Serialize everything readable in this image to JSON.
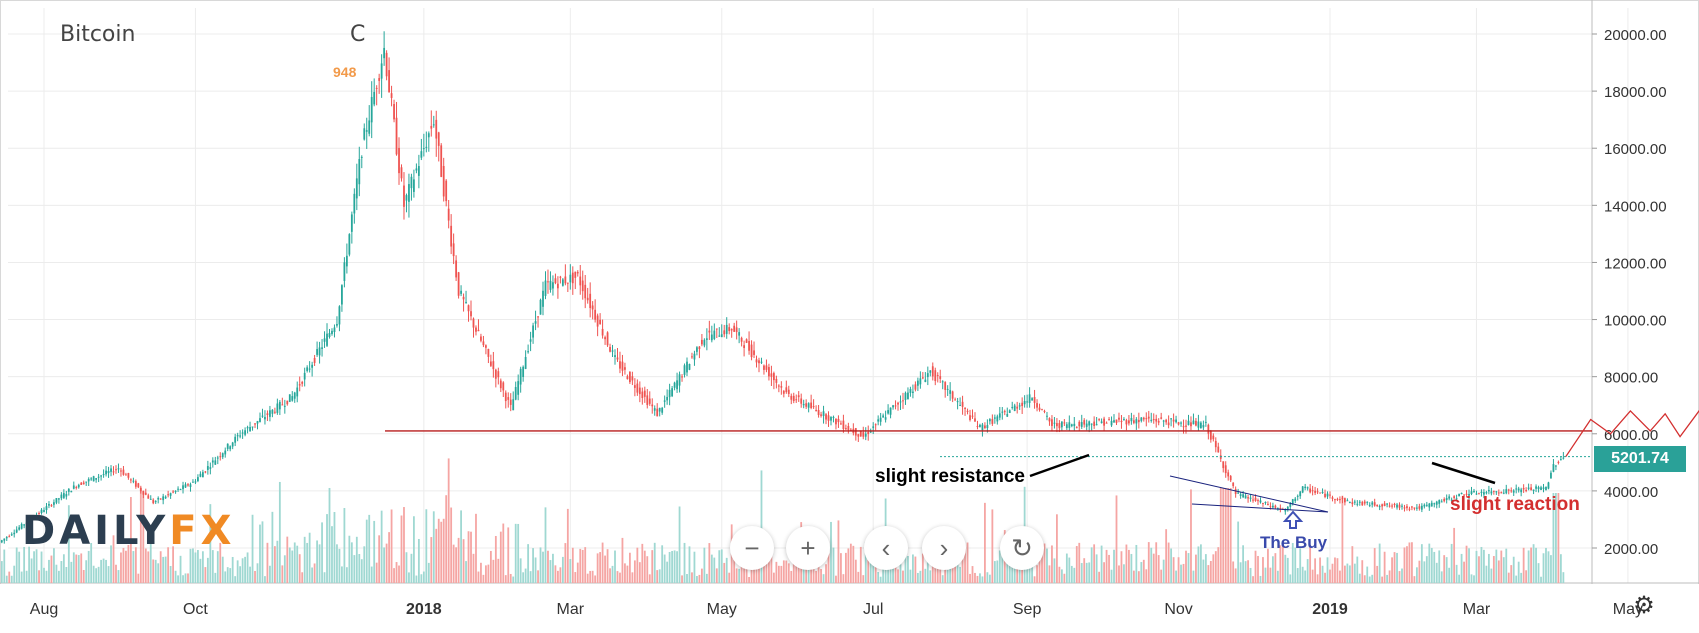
{
  "title": "Bitcoin",
  "title_suffix": "C",
  "high_tag": "948",
  "logo": {
    "part1": "DAILY",
    "part2": "FX"
  },
  "annotations": {
    "resistance": "slight resistance",
    "buy": "The Buy",
    "reaction": "slight reaction"
  },
  "last_price": "5201.74",
  "toolbar": {
    "zoom_out": "−",
    "zoom_in": "+",
    "back": "‹",
    "forward": "›",
    "reset": "↻"
  },
  "settings_icon": "gear-icon",
  "colors": {
    "up": "#26a69a",
    "down": "#ef5350",
    "up_vol": "#9fd8d2",
    "down_vol": "#f5a5a3",
    "support_line": "#b71c1c",
    "projection": "#d32f2f",
    "wedge": "#1a237e",
    "buy_arrow": "#3f51b5",
    "annotation_text": "#000000",
    "reaction_text": "#d32f2f",
    "buy_text": "#3949ab"
  },
  "chart_data": {
    "type": "candlestick",
    "y_ticks": [
      "20000.00",
      "18000.00",
      "16000.00",
      "14000.00",
      "12000.00",
      "10000.00",
      "8000.00",
      "6000.00",
      "4000.00",
      "2000.00"
    ],
    "x_ticks": [
      "Aug",
      "Oct",
      "2018",
      "Mar",
      "May",
      "Jul",
      "Sep",
      "Nov",
      "2019",
      "Mar",
      "May"
    ],
    "ylim": [
      0,
      20700
    ],
    "support_level": 6100,
    "current_level": 5201.74,
    "price_path": [
      [
        "2017-07-15",
        2200
      ],
      [
        "2017-08-15",
        4200
      ],
      [
        "2017-09-01",
        4800
      ],
      [
        "2017-09-15",
        3600
      ],
      [
        "2017-10-01",
        4300
      ],
      [
        "2017-10-20",
        6000
      ],
      [
        "2017-11-10",
        7300
      ],
      [
        "2017-11-28",
        10000
      ],
      [
        "2017-12-08",
        16000
      ],
      [
        "2017-12-17",
        19500
      ],
      [
        "2017-12-25",
        14000
      ],
      [
        "2018-01-06",
        17000
      ],
      [
        "2018-01-16",
        11000
      ],
      [
        "2018-02-06",
        6900
      ],
      [
        "2018-02-20",
        11200
      ],
      [
        "2018-03-05",
        11500
      ],
      [
        "2018-03-20",
        8600
      ],
      [
        "2018-04-06",
        6700
      ],
      [
        "2018-04-25",
        9400
      ],
      [
        "2018-05-06",
        9700
      ],
      [
        "2018-05-28",
        7400
      ],
      [
        "2018-06-28",
        5900
      ],
      [
        "2018-07-25",
        8200
      ],
      [
        "2018-08-14",
        6200
      ],
      [
        "2018-09-04",
        7300
      ],
      [
        "2018-09-12",
        6300
      ],
      [
        "2018-10-20",
        6500
      ],
      [
        "2018-11-13",
        6300
      ],
      [
        "2018-11-25",
        3900
      ],
      [
        "2018-12-15",
        3300
      ],
      [
        "2018-12-22",
        4100
      ],
      [
        "2019-01-10",
        3600
      ],
      [
        "2019-02-07",
        3400
      ],
      [
        "2019-02-25",
        3900
      ],
      [
        "2019-03-30",
        4100
      ],
      [
        "2019-04-02",
        4900
      ],
      [
        "2019-04-06",
        5201.74
      ]
    ],
    "projection": [
      [
        "2019-04-06",
        5201.74
      ],
      [
        "2019-04-16",
        6500
      ],
      [
        "2019-04-24",
        6000
      ],
      [
        "2019-05-02",
        6800
      ],
      [
        "2019-05-10",
        6100
      ],
      [
        "2019-05-16",
        6700
      ],
      [
        "2019-05-22",
        5900
      ],
      [
        "2019-06-08",
        7900
      ]
    ]
  }
}
